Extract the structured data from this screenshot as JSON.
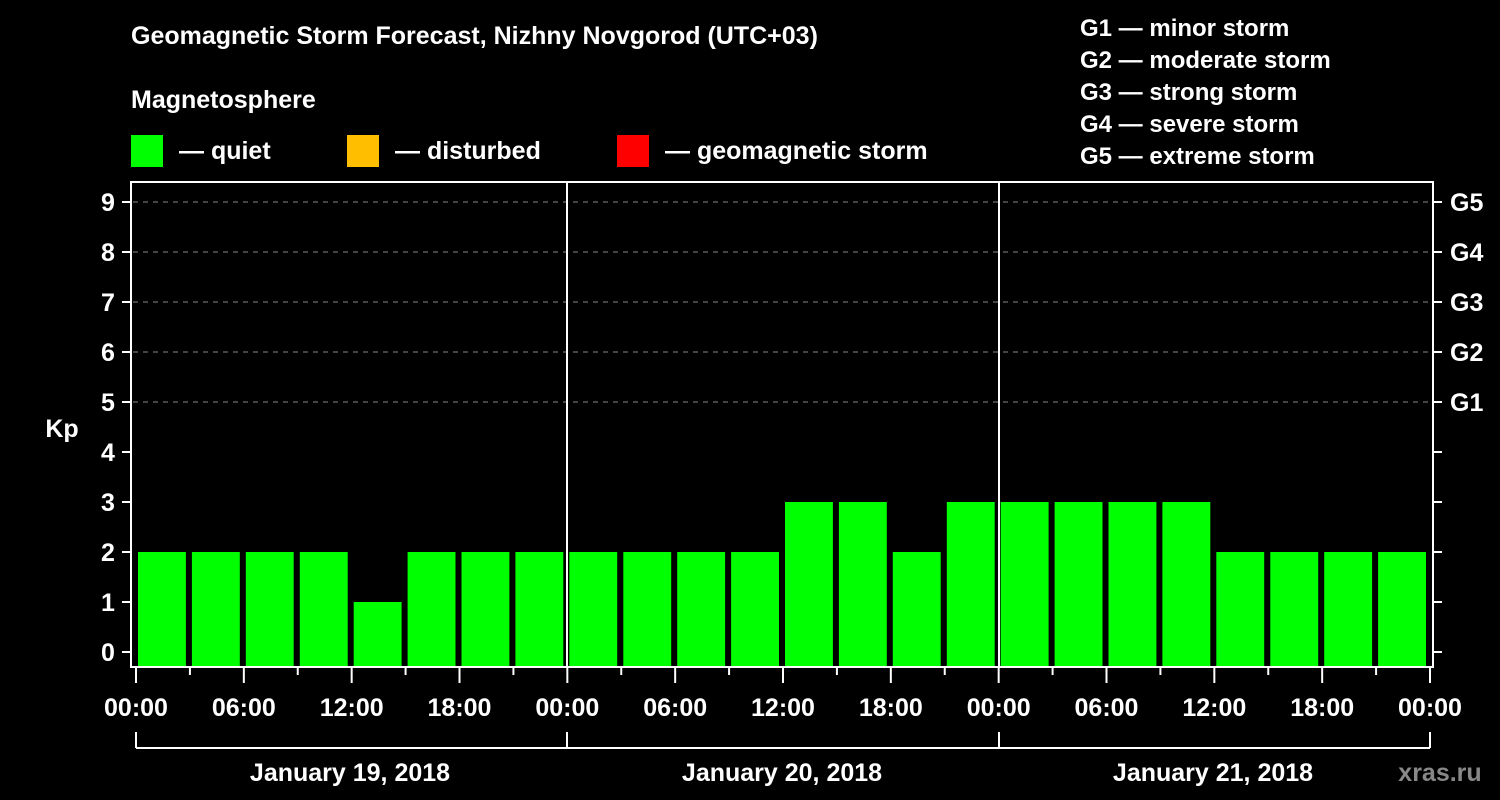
{
  "header": {
    "title": "Geomagnetic Storm Forecast, Nizhny Novgorod (UTC+03)",
    "subtitle": "Magnetosphere"
  },
  "legend": [
    {
      "label": "— quiet",
      "color": "#00ff00"
    },
    {
      "label": "— disturbed",
      "color": "#ffbf00"
    },
    {
      "label": "— geomagnetic storm",
      "color": "#ff0000"
    }
  ],
  "storm_scale": [
    "G1 — minor storm",
    "G2 — moderate storm",
    "G3 — strong storm",
    "G4 — severe storm",
    "G5 — extreme storm"
  ],
  "watermark": "xras.ru",
  "chart_data": {
    "type": "bar",
    "title": "Geomagnetic Storm Forecast, Nizhny Novgorod (UTC+03)",
    "ylabel": "Kp",
    "xlabel": "",
    "ylim": [
      0,
      9
    ],
    "yticks": [
      0,
      1,
      2,
      3,
      4,
      5,
      6,
      7,
      8,
      9
    ],
    "right_axis_labels": [
      {
        "kp": 5,
        "label": "G1"
      },
      {
        "kp": 6,
        "label": "G2"
      },
      {
        "kp": 7,
        "label": "G3"
      },
      {
        "kp": 8,
        "label": "G4"
      },
      {
        "kp": 9,
        "label": "G5"
      }
    ],
    "grid": "dashed horizontal at Kp 5-9",
    "xtick_labels": [
      "00:00",
      "06:00",
      "12:00",
      "18:00",
      "00:00",
      "06:00",
      "12:00",
      "18:00",
      "00:00",
      "06:00",
      "12:00",
      "18:00",
      "00:00"
    ],
    "days": [
      "January 19, 2018",
      "January 20, 2018",
      "January 21, 2018"
    ],
    "categories": [
      "Jan 19 00-03",
      "Jan 19 03-06",
      "Jan 19 06-09",
      "Jan 19 09-12",
      "Jan 19 12-15",
      "Jan 19 15-18",
      "Jan 19 18-21",
      "Jan 19 21-24",
      "Jan 20 00-03",
      "Jan 20 03-06",
      "Jan 20 06-09",
      "Jan 20 09-12",
      "Jan 20 12-15",
      "Jan 20 15-18",
      "Jan 20 18-21",
      "Jan 20 21-24",
      "Jan 21 00-03",
      "Jan 21 03-06",
      "Jan 21 06-09",
      "Jan 21 09-12",
      "Jan 21 12-15",
      "Jan 21 15-18",
      "Jan 21 18-21",
      "Jan 21 21-24"
    ],
    "values": [
      2,
      2,
      2,
      2,
      1,
      2,
      2,
      2,
      2,
      2,
      2,
      2,
      3,
      3,
      2,
      3,
      3,
      3,
      3,
      3,
      2,
      2,
      2,
      2
    ],
    "bar_color": "#00ff00"
  }
}
